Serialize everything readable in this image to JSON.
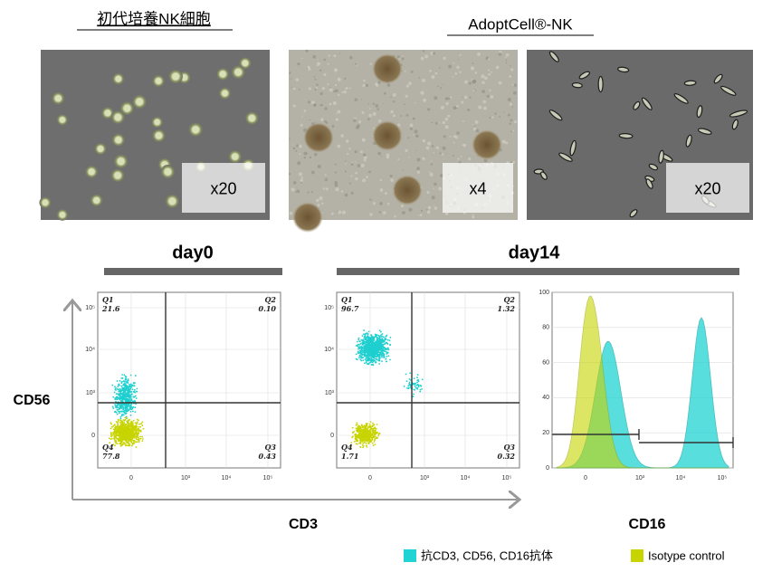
{
  "headers": {
    "primary": "初代培養NK細胞",
    "adopt": "AdoptCell®-NK"
  },
  "magnifications": [
    "x20",
    "x4",
    "x20"
  ],
  "timepoints": [
    "day0",
    "day14"
  ],
  "axes": {
    "y": "CD56",
    "x": "CD3",
    "hist_x": "CD16"
  },
  "scatter_yticks": [
    "10⁵",
    "10⁴",
    "10³",
    "0"
  ],
  "scatter_xticks": [
    "0",
    "10³",
    "10⁴",
    "10⁵"
  ],
  "plots": [
    {
      "quadrants": [
        {
          "name": "Q1",
          "value": "21.6"
        },
        {
          "name": "Q2",
          "value": "0.10"
        },
        {
          "name": "Q3",
          "value": "0.43"
        },
        {
          "name": "Q4",
          "value": "77.8"
        }
      ]
    },
    {
      "quadrants": [
        {
          "name": "Q1",
          "value": "96.7"
        },
        {
          "name": "Q2",
          "value": "1.32"
        },
        {
          "name": "Q3",
          "value": "0.32"
        },
        {
          "name": "Q4",
          "value": "1.71"
        }
      ]
    }
  ],
  "histogram": {
    "ylim": [
      0,
      100
    ],
    "yticks": [
      0,
      20,
      40,
      60,
      80,
      100
    ]
  },
  "legend": [
    "抗CD3, CD56, CD16抗体",
    "Isotype control"
  ]
}
